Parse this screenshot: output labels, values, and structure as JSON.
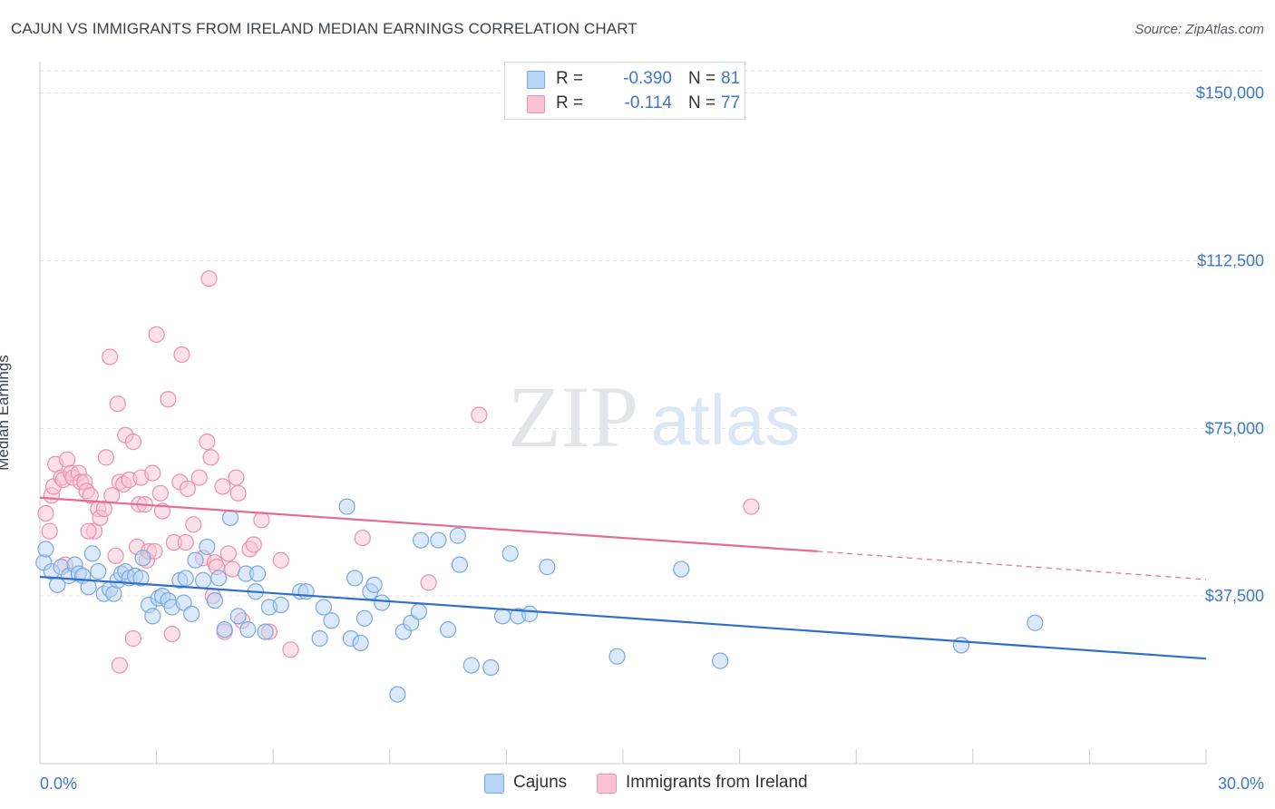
{
  "title": "CAJUN VS IMMIGRANTS FROM IRELAND MEDIAN EARNINGS CORRELATION CHART",
  "source": "Source: ZipAtlas.com",
  "watermark": {
    "zip": "ZIP",
    "atlas": "atlas"
  },
  "legend": {
    "cajun": {
      "r_label": "R =",
      "r_value": "-0.390",
      "n_label": "N =",
      "n_value": "81"
    },
    "ireland": {
      "r_label": "R =",
      "r_value": "-0.114",
      "n_label": "N =",
      "n_value": "77"
    }
  },
  "colors": {
    "cajun_fill": "#b7d3f5",
    "cajun_stroke": "#7aa8de",
    "cajun_line": "#2f6fcc",
    "ireland_fill": "#f9c3d4",
    "ireland_stroke": "#eb90ad",
    "ireland_line": "#e56b94",
    "axis_text": "#3d78c8",
    "grid": "#dcdfe4"
  },
  "chart_data": {
    "type": "scatter",
    "title": "CAJUN VS IMMIGRANTS FROM IRELAND MEDIAN EARNINGS CORRELATION CHART",
    "xlabel": "",
    "ylabel": "Median Earnings",
    "xlim": [
      0,
      30
    ],
    "ylim": [
      0,
      155000
    ],
    "x_tick_labels": [
      "0.0%",
      "30.0%"
    ],
    "y_ticks": [
      37500,
      75000,
      112500,
      150000
    ],
    "y_tick_labels": [
      "$37,500",
      "$75,000",
      "$112,500",
      "$150,000"
    ],
    "grid": "horizontal dashed",
    "legend_placement": "top-center",
    "series": [
      {
        "name": "Cajuns",
        "trend": {
          "x": [
            0,
            30
          ],
          "y": [
            41800,
            23500
          ]
        },
        "points": [
          [
            0.1,
            45000
          ],
          [
            0.15,
            48000
          ],
          [
            0.3,
            43000
          ],
          [
            0.45,
            40000
          ],
          [
            0.55,
            44000
          ],
          [
            0.75,
            42000
          ],
          [
            0.9,
            44500
          ],
          [
            1.0,
            42500
          ],
          [
            1.1,
            42000
          ],
          [
            1.25,
            39500
          ],
          [
            1.35,
            47000
          ],
          [
            1.5,
            43000
          ],
          [
            1.65,
            38000
          ],
          [
            1.8,
            39000
          ],
          [
            1.9,
            38000
          ],
          [
            2.0,
            41000
          ],
          [
            2.1,
            42500
          ],
          [
            2.2,
            43000
          ],
          [
            2.3,
            41500
          ],
          [
            2.45,
            42000
          ],
          [
            2.6,
            41500
          ],
          [
            2.65,
            46000
          ],
          [
            2.8,
            35500
          ],
          [
            2.9,
            33000
          ],
          [
            3.05,
            37000
          ],
          [
            3.15,
            37500
          ],
          [
            3.3,
            36500
          ],
          [
            3.4,
            35000
          ],
          [
            3.6,
            41000
          ],
          [
            3.7,
            36000
          ],
          [
            3.75,
            41500
          ],
          [
            3.9,
            33500
          ],
          [
            4.0,
            45500
          ],
          [
            4.2,
            41000
          ],
          [
            4.3,
            48500
          ],
          [
            4.5,
            36500
          ],
          [
            4.6,
            41500
          ],
          [
            4.75,
            30000
          ],
          [
            4.9,
            55000
          ],
          [
            5.1,
            33000
          ],
          [
            5.3,
            42500
          ],
          [
            5.35,
            30000
          ],
          [
            5.55,
            38500
          ],
          [
            5.6,
            42500
          ],
          [
            5.8,
            29500
          ],
          [
            5.9,
            35000
          ],
          [
            6.2,
            35500
          ],
          [
            6.7,
            38500
          ],
          [
            6.85,
            38500
          ],
          [
            7.2,
            28000
          ],
          [
            7.3,
            35000
          ],
          [
            7.5,
            32000
          ],
          [
            7.9,
            57500
          ],
          [
            8.0,
            28000
          ],
          [
            8.1,
            41500
          ],
          [
            8.25,
            27000
          ],
          [
            8.35,
            32500
          ],
          [
            8.5,
            38500
          ],
          [
            8.6,
            40000
          ],
          [
            8.8,
            36000
          ],
          [
            9.2,
            15500
          ],
          [
            9.35,
            29500
          ],
          [
            9.55,
            31500
          ],
          [
            9.75,
            34000
          ],
          [
            9.8,
            50000
          ],
          [
            10.25,
            50000
          ],
          [
            10.5,
            30000
          ],
          [
            10.75,
            51000
          ],
          [
            10.8,
            44500
          ],
          [
            11.1,
            22000
          ],
          [
            11.6,
            21500
          ],
          [
            11.9,
            33000
          ],
          [
            12.1,
            47000
          ],
          [
            12.3,
            33000
          ],
          [
            12.6,
            33500
          ],
          [
            13.05,
            44000
          ],
          [
            14.85,
            24000
          ],
          [
            16.5,
            43500
          ],
          [
            17.5,
            23000
          ],
          [
            23.7,
            26500
          ],
          [
            25.6,
            31500
          ]
        ]
      },
      {
        "name": "Immigrants from Ireland",
        "trend": {
          "x": [
            0,
            20
          ],
          "y": [
            59500,
            47500
          ]
        },
        "trend_extension": {
          "x": [
            20,
            30
          ],
          "y": [
            47500,
            41200
          ]
        },
        "points": [
          [
            0.15,
            56000
          ],
          [
            0.25,
            52000
          ],
          [
            0.3,
            60000
          ],
          [
            0.35,
            62000
          ],
          [
            0.4,
            67000
          ],
          [
            0.55,
            64000
          ],
          [
            0.6,
            63500
          ],
          [
            0.7,
            68000
          ],
          [
            0.8,
            65000
          ],
          [
            0.85,
            64000
          ],
          [
            1.0,
            65000
          ],
          [
            1.05,
            63000
          ],
          [
            1.15,
            63000
          ],
          [
            1.2,
            61000
          ],
          [
            1.3,
            60000
          ],
          [
            1.4,
            52000
          ],
          [
            1.5,
            57000
          ],
          [
            1.55,
            55000
          ],
          [
            1.65,
            57000
          ],
          [
            1.7,
            68500
          ],
          [
            1.8,
            91000
          ],
          [
            1.85,
            60000
          ],
          [
            1.95,
            46500
          ],
          [
            2.0,
            80500
          ],
          [
            2.05,
            63000
          ],
          [
            2.15,
            62500
          ],
          [
            2.2,
            73500
          ],
          [
            2.3,
            63500
          ],
          [
            2.4,
            72000
          ],
          [
            2.5,
            48500
          ],
          [
            2.55,
            58000
          ],
          [
            2.6,
            64000
          ],
          [
            2.7,
            58000
          ],
          [
            2.75,
            45500
          ],
          [
            2.8,
            47500
          ],
          [
            2.9,
            65000
          ],
          [
            2.95,
            47500
          ],
          [
            3.0,
            96000
          ],
          [
            3.1,
            60500
          ],
          [
            3.15,
            56500
          ],
          [
            3.3,
            81500
          ],
          [
            3.4,
            29000
          ],
          [
            3.45,
            49500
          ],
          [
            3.6,
            63000
          ],
          [
            3.65,
            91500
          ],
          [
            3.75,
            49500
          ],
          [
            3.8,
            61500
          ],
          [
            3.95,
            53500
          ],
          [
            4.1,
            64000
          ],
          [
            4.2,
            46000
          ],
          [
            4.3,
            72000
          ],
          [
            4.4,
            68500
          ],
          [
            4.45,
            37500
          ],
          [
            4.5,
            45000
          ],
          [
            4.55,
            44000
          ],
          [
            4.7,
            62000
          ],
          [
            4.75,
            29500
          ],
          [
            4.85,
            47000
          ],
          [
            4.95,
            43500
          ],
          [
            5.05,
            64000
          ],
          [
            5.1,
            60500
          ],
          [
            5.2,
            32000
          ],
          [
            5.4,
            48000
          ],
          [
            5.5,
            49000
          ],
          [
            5.7,
            54500
          ],
          [
            5.9,
            29500
          ],
          [
            6.2,
            45500
          ],
          [
            6.45,
            25500
          ],
          [
            2.4,
            28000
          ],
          [
            8.3,
            50500
          ],
          [
            10.0,
            40500
          ],
          [
            11.3,
            78000
          ],
          [
            18.3,
            57500
          ],
          [
            2.05,
            22000
          ],
          [
            4.35,
            108500
          ],
          [
            0.65,
            44500
          ],
          [
            1.25,
            52000
          ]
        ]
      }
    ]
  },
  "bottom_legend": {
    "cajun": "Cajuns",
    "ireland": "Immigrants from Ireland"
  }
}
